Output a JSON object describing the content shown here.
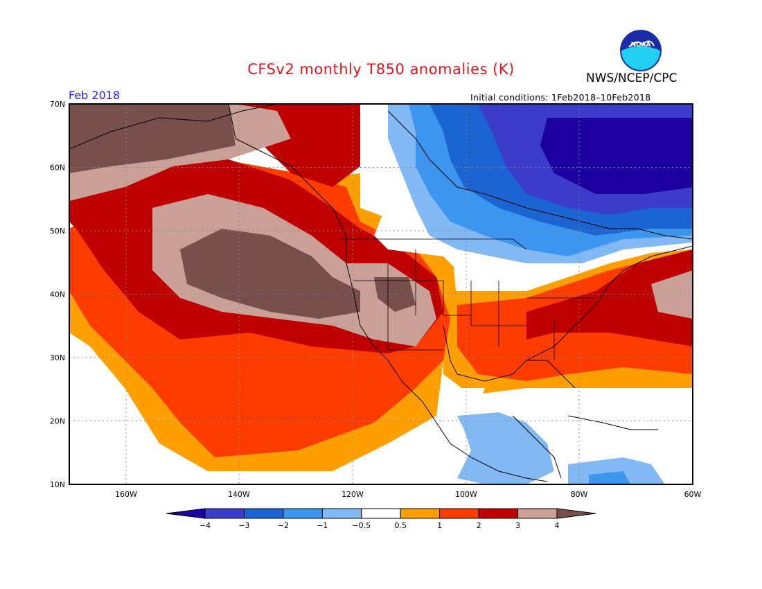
{
  "header": {
    "title": "CFSv2 monthly T850 anomalies (K)",
    "org": "NWS/NCEP/CPC",
    "logo_text": "NOAA",
    "period": "Feb 2018",
    "initial_conditions": "Initial conditions: 1Feb2018–10Feb2018"
  },
  "map": {
    "lat_labels": [
      "70N",
      "60N",
      "50N",
      "40N",
      "30N",
      "20N",
      "10N"
    ],
    "lon_labels": [
      "160W",
      "140W",
      "120W",
      "100W",
      "80W",
      "60W"
    ],
    "extent": {
      "lon_min": -171,
      "lon_max": -60,
      "lat_min": 10,
      "lat_max": 70
    }
  },
  "legend": {
    "tick_labels": [
      "−4",
      "−3",
      "−2",
      "−1",
      "−0.5",
      "0.5",
      "1",
      "2",
      "3",
      "4"
    ],
    "colors": [
      "#1c00a0",
      "#3c3ccc",
      "#1c64d2",
      "#3c96f0",
      "#82b9f5",
      "#ffffff",
      "#ffa000",
      "#ff3c00",
      "#be0000",
      "#c8a096",
      "#78504b"
    ]
  }
}
